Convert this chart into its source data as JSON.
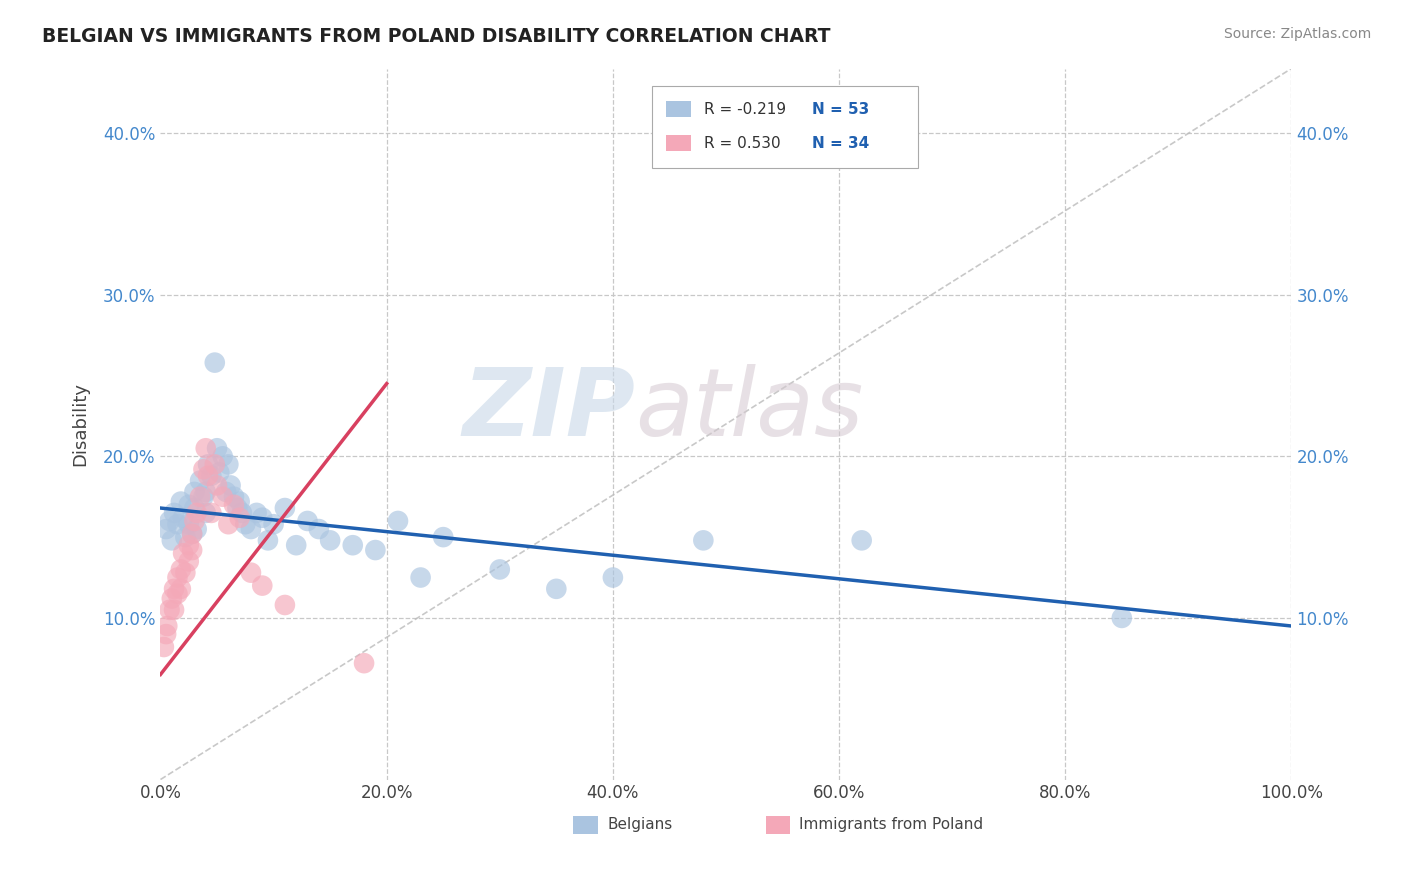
{
  "title": "BELGIAN VS IMMIGRANTS FROM POLAND DISABILITY CORRELATION CHART",
  "source": "Source: ZipAtlas.com",
  "ylabel": "Disability",
  "xlim": [
    0.0,
    1.0
  ],
  "ylim": [
    0.0,
    0.44
  ],
  "xticks": [
    0.0,
    0.2,
    0.4,
    0.6,
    0.8,
    1.0
  ],
  "xticklabels": [
    "0.0%",
    "20.0%",
    "40.0%",
    "60.0%",
    "80.0%",
    "100.0%"
  ],
  "yticks": [
    0.1,
    0.2,
    0.3,
    0.4
  ],
  "yticklabels": [
    "10.0%",
    "20.0%",
    "30.0%",
    "40.0%"
  ],
  "grid_color": "#c8c8c8",
  "background_color": "#ffffff",
  "watermark_zip": "ZIP",
  "watermark_atlas": "atlas",
  "legend_r1": "R = -0.219",
  "legend_n1": "N = 53",
  "legend_r2": "R = 0.530",
  "legend_n2": "N = 34",
  "blue_color": "#aac4e0",
  "pink_color": "#f4a8b8",
  "blue_line_color": "#2060b0",
  "pink_line_color": "#d84060",
  "ref_line_color": "#bbbbbb",
  "belgians_x": [
    0.005,
    0.008,
    0.01,
    0.012,
    0.015,
    0.018,
    0.02,
    0.022,
    0.025,
    0.025,
    0.028,
    0.03,
    0.03,
    0.032,
    0.035,
    0.038,
    0.04,
    0.04,
    0.042,
    0.045,
    0.048,
    0.05,
    0.052,
    0.055,
    0.058,
    0.06,
    0.062,
    0.065,
    0.068,
    0.07,
    0.072,
    0.075,
    0.08,
    0.085,
    0.09,
    0.095,
    0.1,
    0.11,
    0.12,
    0.13,
    0.14,
    0.15,
    0.17,
    0.19,
    0.21,
    0.23,
    0.25,
    0.3,
    0.35,
    0.4,
    0.48,
    0.62,
    0.85
  ],
  "belgians_y": [
    0.155,
    0.16,
    0.148,
    0.165,
    0.158,
    0.172,
    0.162,
    0.15,
    0.17,
    0.158,
    0.152,
    0.178,
    0.168,
    0.155,
    0.185,
    0.175,
    0.165,
    0.178,
    0.195,
    0.188,
    0.258,
    0.205,
    0.19,
    0.2,
    0.178,
    0.195,
    0.182,
    0.175,
    0.168,
    0.172,
    0.165,
    0.158,
    0.155,
    0.165,
    0.162,
    0.148,
    0.158,
    0.168,
    0.145,
    0.16,
    0.155,
    0.148,
    0.145,
    0.142,
    0.16,
    0.125,
    0.15,
    0.13,
    0.118,
    0.125,
    0.148,
    0.148,
    0.1
  ],
  "poland_x": [
    0.003,
    0.005,
    0.006,
    0.008,
    0.01,
    0.012,
    0.012,
    0.015,
    0.015,
    0.018,
    0.018,
    0.02,
    0.022,
    0.025,
    0.025,
    0.028,
    0.028,
    0.03,
    0.032,
    0.035,
    0.038,
    0.04,
    0.042,
    0.045,
    0.048,
    0.05,
    0.055,
    0.06,
    0.065,
    0.07,
    0.08,
    0.09,
    0.11,
    0.18
  ],
  "poland_y": [
    0.082,
    0.09,
    0.095,
    0.105,
    0.112,
    0.118,
    0.105,
    0.125,
    0.115,
    0.13,
    0.118,
    0.14,
    0.128,
    0.145,
    0.135,
    0.152,
    0.142,
    0.16,
    0.165,
    0.175,
    0.192,
    0.205,
    0.188,
    0.165,
    0.195,
    0.182,
    0.175,
    0.158,
    0.17,
    0.162,
    0.128,
    0.12,
    0.108,
    0.072
  ],
  "blue_trend_x0": 0.0,
  "blue_trend_y0": 0.168,
  "blue_trend_x1": 1.0,
  "blue_trend_y1": 0.095,
  "pink_trend_x0": 0.0,
  "pink_trend_y0": 0.065,
  "pink_trend_x1": 0.2,
  "pink_trend_y1": 0.245
}
